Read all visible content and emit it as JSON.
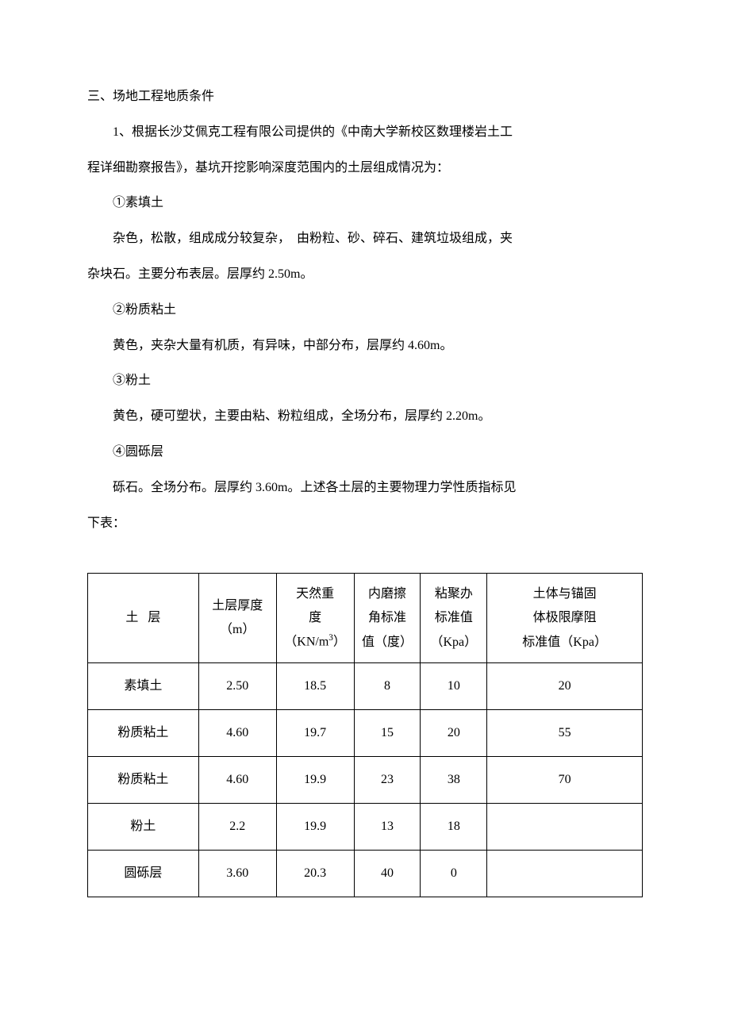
{
  "heading": "三、场地工程地质条件",
  "paragraphs": {
    "p1a": "1、根据长沙艾佩克工程有限公司提供的《中南大学新校区数理楼岩土工",
    "p1b": "程详细勘察报告》，基坑开挖影响深度范围内的土层组成情况为：",
    "p2": "①素填土",
    "p3a": "杂色，松散，组成成分较复杂，　由粉粒、砂、碎石、建筑垃圾组成，夹",
    "p3b": "杂块石。主要分布表层。层厚约 2.50m。",
    "p4": "②粉质粘土",
    "p5": "黄色，夹杂大量有机质，有异味，中部分布，层厚约 4.60m。",
    "p6": "③粉土",
    "p7": "黄色，硬可塑状，主要由粘、粉粒组成，全场分布，层厚约 2.20m。",
    "p8": "④圆砾层",
    "p9a": "砾石。全场分布。层厚约 3.60m。上述各土层的主要物理力学性质指标见",
    "p9b": "下表："
  },
  "table": {
    "headers": {
      "soil_prefix": "土",
      "soil_suffix": "层",
      "thickness_l1": "土层厚度",
      "thickness_l2": "（m）",
      "unit_weight_l1": "天然重",
      "unit_weight_l2": "度",
      "unit_weight_l3a": "（KN/m",
      "unit_weight_l3b": "3",
      "unit_weight_l3c": "）",
      "friction_l1": "内磨擦",
      "friction_l2": "角标准",
      "friction_l3": "值（度）",
      "cohesion_l1": "粘聚办",
      "cohesion_l2": "标准值",
      "cohesion_l3": "（Kpa）",
      "anchor_l1": "土体与锚固",
      "anchor_l2": "体极限摩阻",
      "anchor_l3": "标准值（Kpa）"
    },
    "rows": [
      {
        "soil": "素填土",
        "thickness": "2.50",
        "unit_weight": "18.5",
        "friction_angle": "8",
        "cohesion": "10",
        "anchor": "20"
      },
      {
        "soil": "粉质粘土",
        "thickness": "4.60",
        "unit_weight": "19.7",
        "friction_angle": "15",
        "cohesion": "20",
        "anchor": "55"
      },
      {
        "soil": "粉质粘土",
        "thickness": "4.60",
        "unit_weight": "19.9",
        "friction_angle": "23",
        "cohesion": "38",
        "anchor": "70"
      },
      {
        "soil": "粉土",
        "thickness": "2.2",
        "unit_weight": "19.9",
        "friction_angle": "13",
        "cohesion": "18",
        "anchor": ""
      },
      {
        "soil": "圆砾层",
        "thickness": "3.60",
        "unit_weight": "20.3",
        "friction_angle": "40",
        "cohesion": "0",
        "anchor": ""
      }
    ]
  }
}
